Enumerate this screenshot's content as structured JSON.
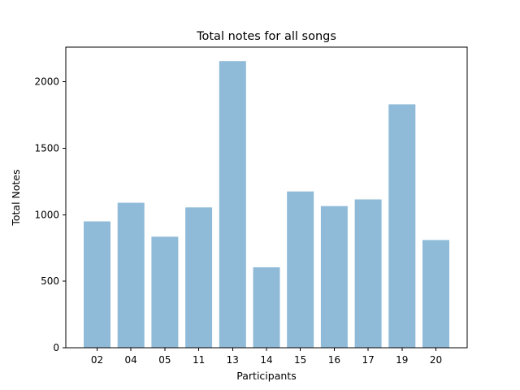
{
  "chart_data": {
    "type": "bar",
    "title": "Total notes for all songs",
    "xlabel": "Participants",
    "ylabel": "Total Notes",
    "categories": [
      "02",
      "04",
      "05",
      "11",
      "13",
      "14",
      "15",
      "16",
      "17",
      "19",
      "20"
    ],
    "values": [
      950,
      1090,
      835,
      1055,
      2155,
      605,
      1175,
      1065,
      1115,
      1830,
      810
    ],
    "ylim": [
      0,
      2260
    ],
    "yticks": [
      0,
      500,
      1000,
      1500,
      2000
    ],
    "bar_color": "#8fbbd9",
    "grid": false,
    "legend": "none"
  }
}
